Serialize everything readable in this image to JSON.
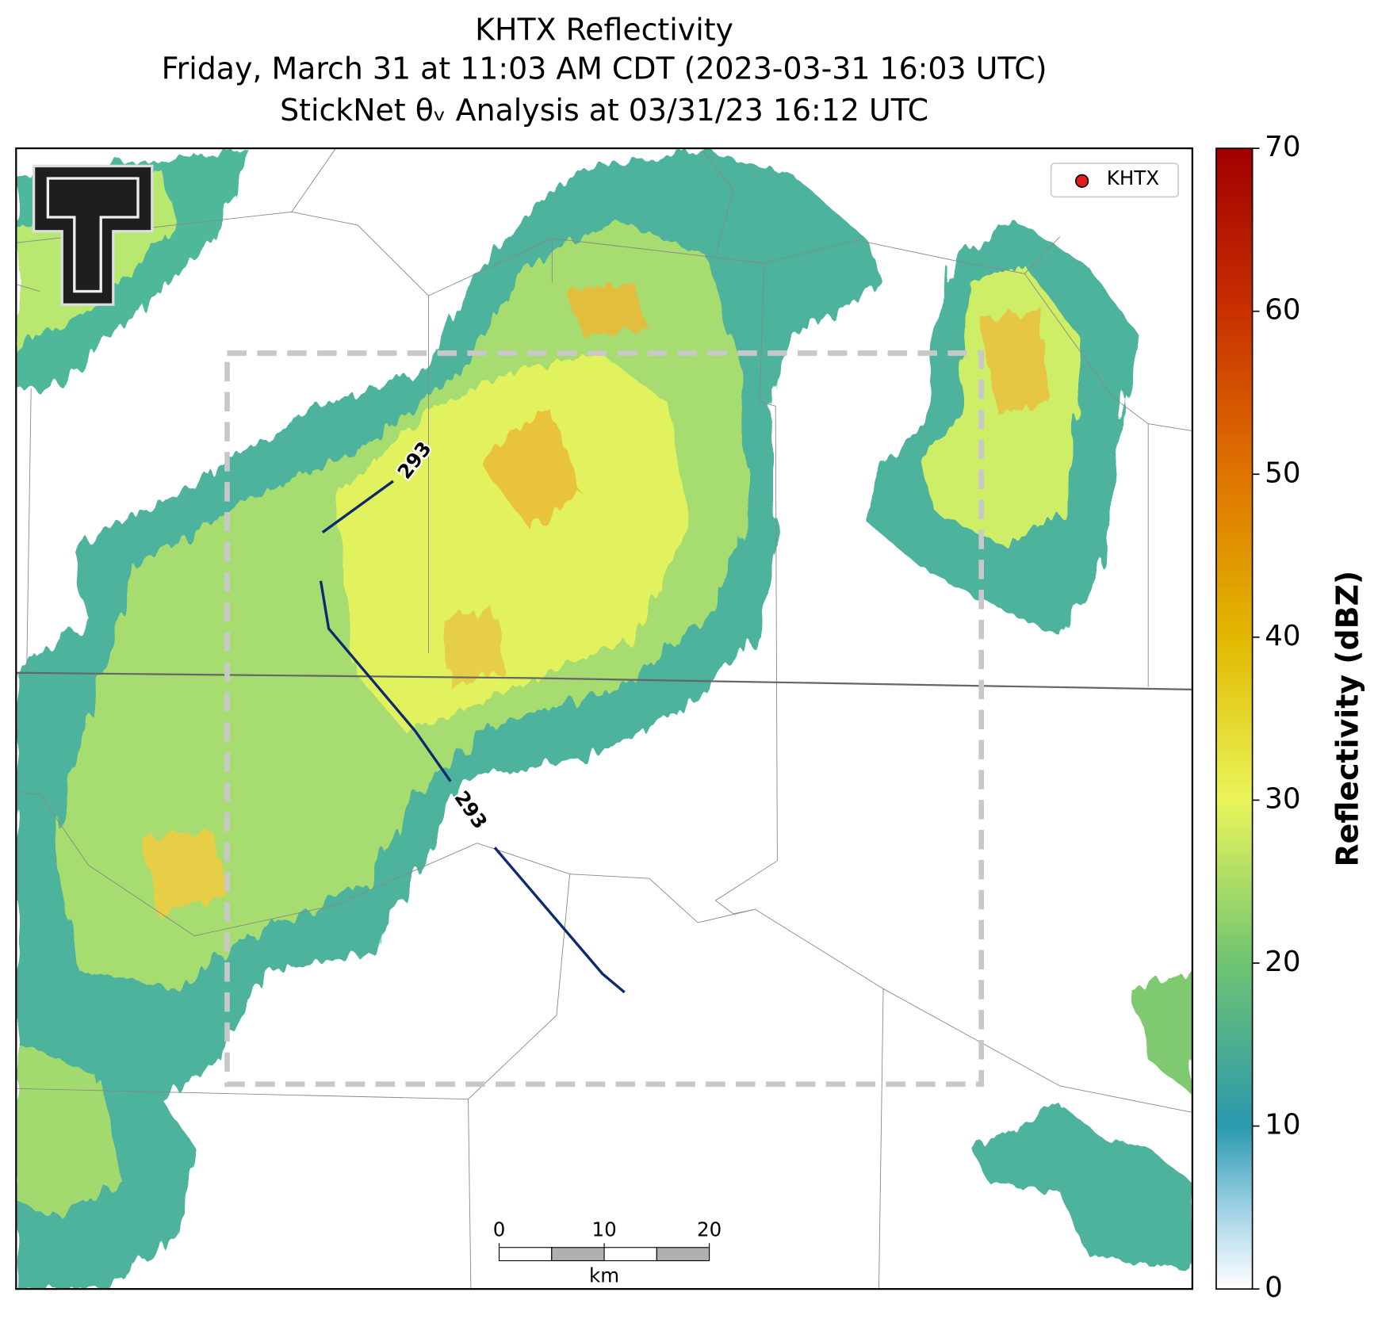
{
  "title": [
    "KHTX Reflectivity",
    "Friday, March 31 at 11:03 AM CDT (2023-03-31 16:03 UTC)",
    "StickNet θᵥ Analysis at 03/31/23 16:12 UTC"
  ],
  "colorbar": {
    "label": "Reflectivity (dBZ)",
    "lim": [
      0,
      70
    ],
    "ticks": [
      0,
      10,
      20,
      30,
      40,
      50,
      60,
      70
    ]
  },
  "legend": [
    "KHTX"
  ],
  "contours": [
    "293",
    "293"
  ],
  "scale_bar": {
    "ticks": [
      0,
      10,
      20
    ],
    "unit": "km"
  }
}
